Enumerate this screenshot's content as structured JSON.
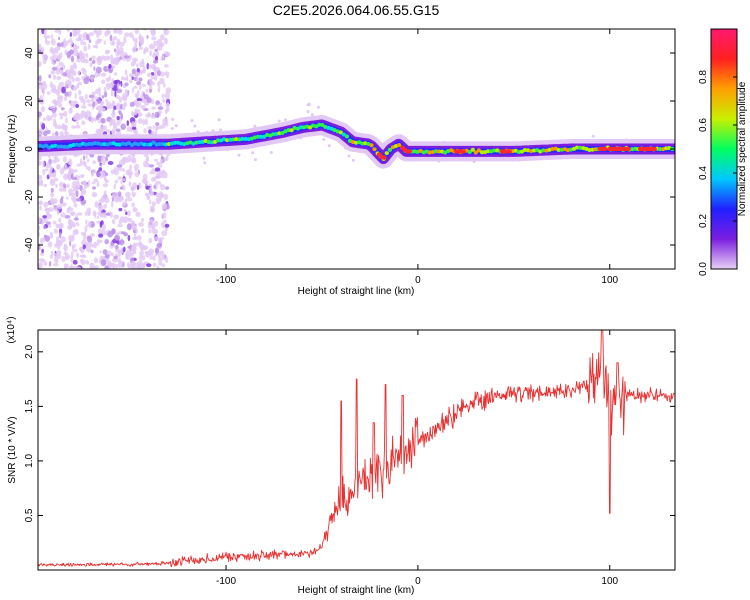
{
  "title": "C2E5.2026.064.06.55.G15",
  "chart_data": [
    {
      "type": "heatmap",
      "xlabel": "Height of straight line (km)",
      "ylabel": "Frequency (Hz)",
      "xlim": [
        -198,
        134
      ],
      "ylim": [
        -50,
        50
      ],
      "xticks": [
        -100,
        0,
        100
      ],
      "xtick_labels": [
        "-100",
        "0",
        "100"
      ],
      "yticks": [
        -40,
        -20,
        0,
        20,
        40
      ],
      "ytick_labels": [
        "-40",
        "-20",
        "0",
        "20",
        "40"
      ],
      "colorbar": {
        "label": "Normalized spectral amplitude",
        "range": [
          0.0,
          1.0
        ],
        "ticks": [
          0.0,
          0.2,
          0.4,
          0.6,
          0.8
        ],
        "tick_labels": [
          "0.0",
          "0.2",
          "0.4",
          "0.6",
          "0.8"
        ],
        "colors": [
          "#e8d0f4",
          "#7b1ee0",
          "#2020ff",
          "#00c8ff",
          "#00ff60",
          "#c8f000",
          "#ffa000",
          "#ff2020",
          "#ff1a70"
        ]
      },
      "ridge": {
        "x": [
          -198,
          -170,
          -150,
          -130,
          -110,
          -90,
          -70,
          -60,
          -50,
          -40,
          -34,
          -25,
          -18,
          -14,
          -10,
          -6,
          0,
          20,
          50,
          80,
          100,
          120,
          134
        ],
        "y": [
          1,
          2,
          2,
          2,
          3,
          4,
          7,
          9,
          10,
          7,
          3,
          2,
          -4,
          0,
          2,
          -1,
          -1,
          -1,
          -1,
          0,
          0,
          0,
          0
        ]
      },
      "noise_region_x": [
        -198,
        -130
      ]
    },
    {
      "type": "line",
      "xlabel": "Height of straight line (km)",
      "ylabel": "SNR (10 * V/V)",
      "y_multiplier": "(x10⁴)",
      "xlim": [
        -198,
        134
      ],
      "ylim": [
        0,
        2.2
      ],
      "xticks": [
        -100,
        0,
        100
      ],
      "xtick_labels": [
        "-100",
        "0",
        "100"
      ],
      "yticks": [
        0.5,
        1.0,
        1.5,
        2.0
      ],
      "ytick_labels": [
        "0.5",
        "1.0",
        "1.5",
        "2.0"
      ],
      "color": "#e83030",
      "series": [
        {
          "name": "SNR",
          "x": [
            -198,
            -150,
            -130,
            -120,
            -100,
            -80,
            -60,
            -50,
            -45,
            -40,
            -35,
            -30,
            -25,
            -20,
            -15,
            -10,
            -5,
            0,
            10,
            20,
            30,
            40,
            60,
            80,
            90,
            95,
            100,
            105,
            110,
            120,
            134
          ],
          "y": [
            0.05,
            0.05,
            0.06,
            0.09,
            0.12,
            0.13,
            0.15,
            0.2,
            0.5,
            0.65,
            0.7,
            0.8,
            0.85,
            0.9,
            0.95,
            1.0,
            1.05,
            1.15,
            1.3,
            1.45,
            1.55,
            1.6,
            1.62,
            1.65,
            1.7,
            1.8,
            1.6,
            1.55,
            1.6,
            1.6,
            1.6
          ]
        }
      ],
      "spikes": [
        {
          "x": -40,
          "y": 1.55
        },
        {
          "x": -32,
          "y": 1.75
        },
        {
          "x": -23,
          "y": 1.35
        },
        {
          "x": -17,
          "y": 1.7
        },
        {
          "x": -8,
          "y": 1.6
        },
        {
          "x": 96,
          "y": 2.2
        },
        {
          "x": 100,
          "y": 0.52
        },
        {
          "x": 104,
          "y": 1.9
        }
      ]
    }
  ]
}
